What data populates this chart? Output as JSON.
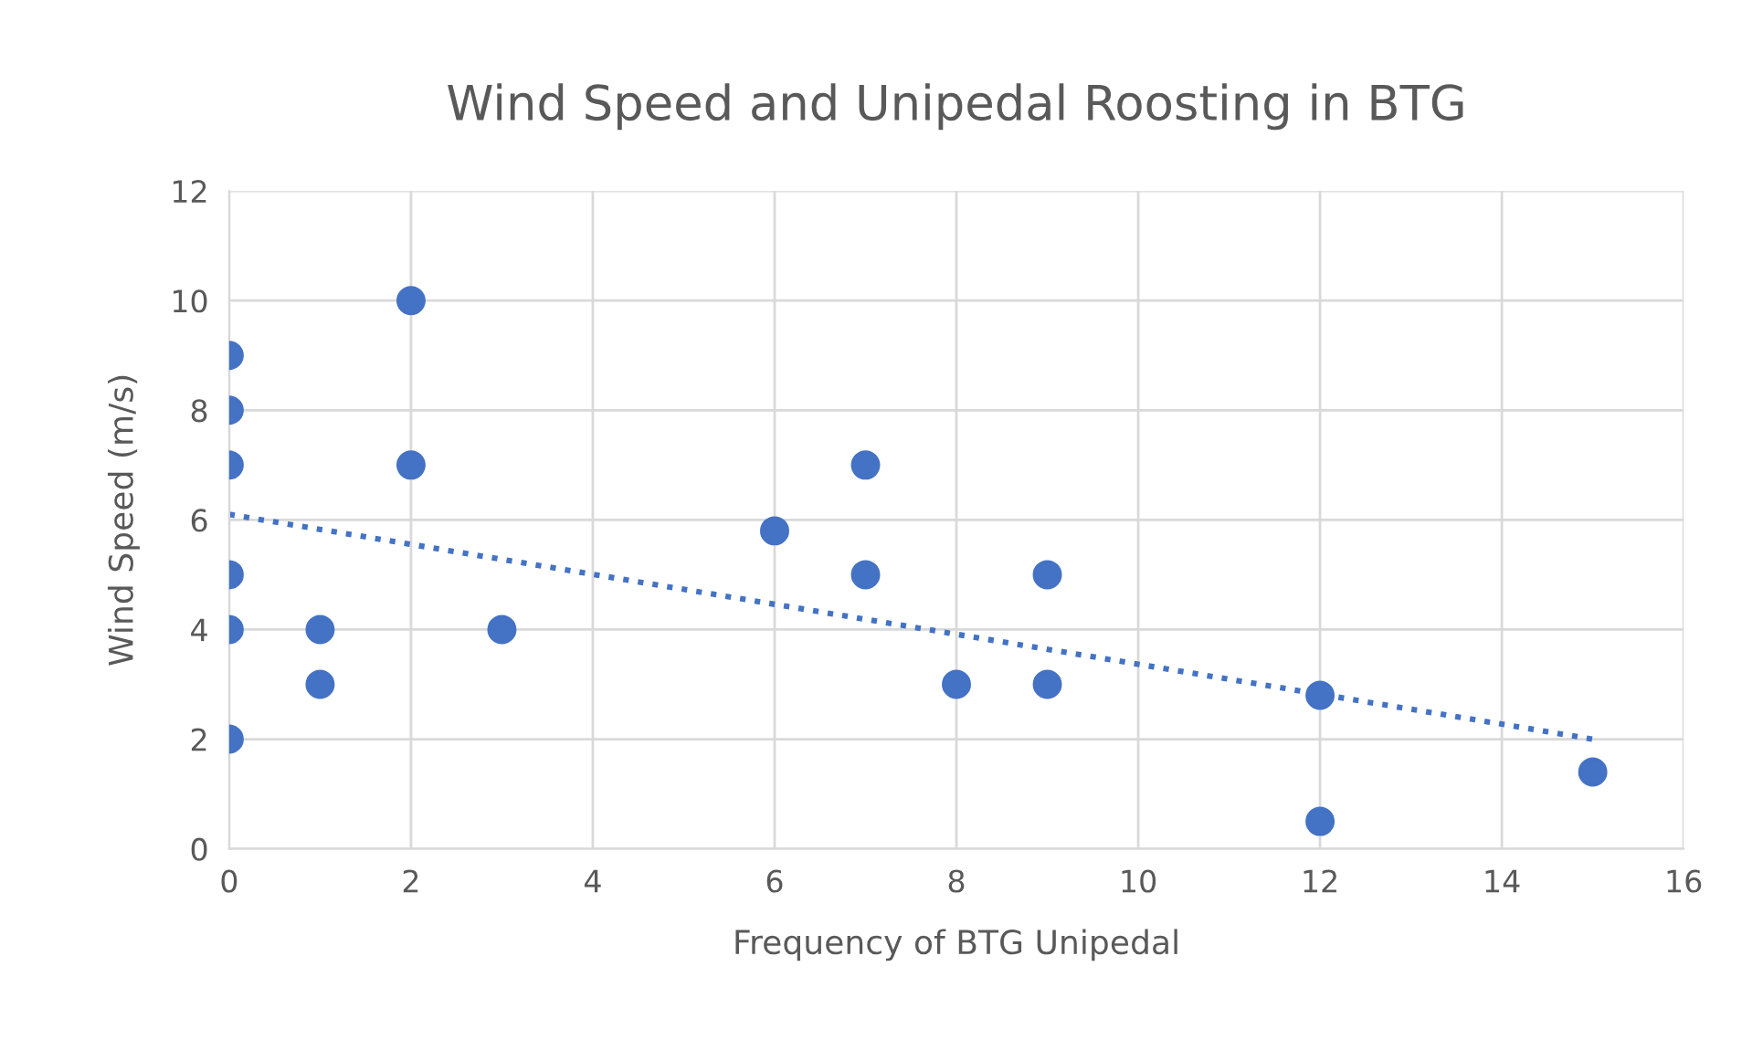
{
  "chart_data": {
    "type": "scatter",
    "title": "Wind Speed and Unipedal Roosting in BTG",
    "xlabel": "Frequency of BTG Unipedal",
    "ylabel": "Wind Speed (m/s)",
    "xlim": [
      0,
      16
    ],
    "xticks": [
      0,
      2,
      4,
      6,
      8,
      10,
      12,
      14,
      16
    ],
    "ylim": [
      0,
      12
    ],
    "yticks": [
      0,
      2,
      4,
      6,
      8,
      10,
      12
    ],
    "grid": true,
    "legend": false,
    "marker": "circle",
    "series": [
      {
        "color": "#4472c4",
        "x": [
          0,
          0,
          0,
          0,
          0,
          0,
          1,
          1,
          2,
          2,
          3,
          6,
          7,
          7,
          8,
          9,
          9,
          12,
          12,
          15
        ],
        "values": [
          9,
          8,
          7,
          5,
          4,
          2,
          4,
          3,
          10,
          7,
          4,
          5.8,
          7,
          5,
          3,
          5,
          3,
          2.8,
          0.5,
          1.4
        ]
      },
      {
        "type": "line",
        "color": "#4472c4",
        "line_style": "dotted",
        "marker": "none",
        "x": [
          0,
          15
        ],
        "values": [
          6.1,
          2.0
        ]
      }
    ]
  }
}
